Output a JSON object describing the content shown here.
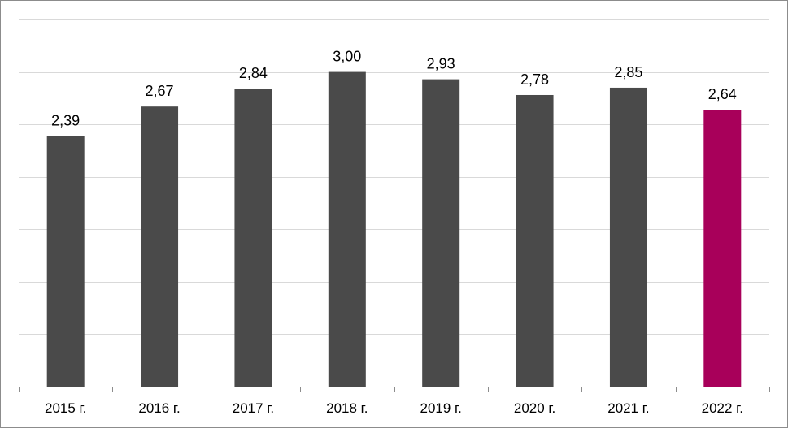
{
  "chart_data": {
    "type": "bar",
    "title": "",
    "xlabel": "",
    "ylabel": "",
    "categories": [
      "2015 г.",
      "2016 г.",
      "2017 г.",
      "2018 г.",
      "2019 г.",
      "2020 г.",
      "2021 г.",
      "2022 г."
    ],
    "values": [
      2.39,
      2.67,
      2.84,
      3.0,
      2.93,
      2.78,
      2.85,
      2.64
    ],
    "data_labels": [
      "2,39",
      "2,67",
      "2,84",
      "3,00",
      "2,93",
      "2,78",
      "2,85",
      "2,64"
    ],
    "ylim": [
      0,
      3.5
    ],
    "ytick_step": 0.5,
    "grid": true,
    "legend": "none",
    "colors": {
      "default_bar": "#4a4a4a",
      "highlight_bar": "#a8005a",
      "grid": "#d9d9d9",
      "axis": "#8c8c8c"
    },
    "highlight_index": 7
  }
}
